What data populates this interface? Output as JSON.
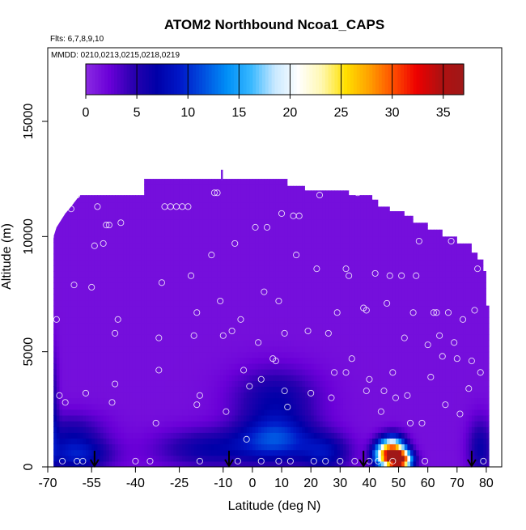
{
  "chart_data": {
    "type": "heatmap",
    "title": "ATOM2 Northbound Ncoa1_CAPS",
    "flights_note": "Flts: 6,7,8,9,10",
    "dates_note": "MMDD: 0210,0213,0215,0218,0219",
    "xlabel": "Latitude (deg N)",
    "ylabel": "Altitude (m)",
    "xlim": [
      -70,
      85
    ],
    "ylim": [
      0,
      17500
    ],
    "x_ticks": [
      -70,
      -55,
      -40,
      -25,
      -10,
      0,
      10,
      20,
      30,
      40,
      50,
      60,
      70,
      80
    ],
    "y_ticks": [
      0,
      5000,
      10000,
      15000
    ],
    "colorbar": {
      "range": [
        0,
        37
      ],
      "ticks": [
        0,
        5,
        10,
        15,
        20,
        25,
        30,
        35
      ],
      "stops": [
        "#8a2be2",
        "#6a00d8",
        "#2a00b0",
        "#0000a8",
        "#0018c8",
        "#0050e0",
        "#0090f8",
        "#38b8ff",
        "#c8e8ff",
        "#ffffff",
        "#fff8b0",
        "#ffe000",
        "#ffa000",
        "#ff5000",
        "#ee0000",
        "#b01010",
        "#a01818"
      ]
    },
    "ceiling_profile": [
      [
        -68,
        10000
      ],
      [
        -67,
        10400
      ],
      [
        -66,
        10600
      ],
      [
        -64,
        11000
      ],
      [
        -62,
        11300
      ],
      [
        -59,
        11800
      ],
      [
        -37,
        11800
      ],
      [
        -37,
        12500
      ],
      [
        -1,
        12500
      ],
      [
        8,
        12500
      ],
      [
        12,
        12500
      ],
      [
        12,
        12200
      ],
      [
        18,
        12200
      ],
      [
        18,
        12000
      ],
      [
        33,
        12000
      ],
      [
        33,
        11800
      ],
      [
        41,
        11800
      ],
      [
        41,
        11600
      ],
      [
        43,
        11600
      ],
      [
        43,
        11300
      ],
      [
        47,
        11300
      ],
      [
        47,
        11100
      ],
      [
        52,
        11100
      ],
      [
        52,
        10900
      ],
      [
        55,
        10900
      ],
      [
        55,
        10600
      ],
      [
        60,
        10600
      ],
      [
        60,
        10300
      ],
      [
        65,
        10300
      ],
      [
        65,
        10000
      ],
      [
        70,
        10000
      ],
      [
        70,
        9700
      ],
      [
        75,
        9700
      ],
      [
        75,
        9300
      ],
      [
        77,
        9300
      ],
      [
        77,
        9000
      ],
      [
        79,
        9000
      ],
      [
        79,
        8500
      ],
      [
        80,
        8500
      ],
      [
        80,
        7000
      ],
      [
        81,
        7000
      ],
      [
        81,
        0
      ],
      [
        -68,
        0
      ]
    ],
    "background_value": 1.5,
    "hotspots": [
      {
        "x": 50,
        "y": 300,
        "sx": 3,
        "sy": 300,
        "value": 35
      },
      {
        "x": 48,
        "y": 800,
        "sx": 3,
        "sy": 400,
        "value": 22
      },
      {
        "x": 44,
        "y": 500,
        "sx": 2.5,
        "sy": 400,
        "value": 12
      },
      {
        "x": 8,
        "y": 1200,
        "sx": 9,
        "sy": 700,
        "value": 9
      },
      {
        "x": 8,
        "y": 3000,
        "sx": 10,
        "sy": 900,
        "value": 5
      },
      {
        "x": -60,
        "y": 500,
        "sx": 8,
        "sy": 500,
        "value": 7
      },
      {
        "x": -62,
        "y": 1500,
        "sx": 8,
        "sy": 600,
        "value": 4
      },
      {
        "x": 25,
        "y": 600,
        "sx": 6,
        "sy": 600,
        "value": 6
      },
      {
        "x": -15,
        "y": 800,
        "sx": 12,
        "sy": 600,
        "value": 5
      },
      {
        "x": 78,
        "y": 800,
        "sx": 3,
        "sy": 900,
        "value": 5
      },
      {
        "x": -68,
        "y": 2500,
        "sx": 1.2,
        "sy": 1800,
        "value": 4
      }
    ],
    "observation_points": [
      [
        -69,
        10000
      ],
      [
        -68,
        10600
      ],
      [
        -67,
        6400
      ],
      [
        -66,
        3100
      ],
      [
        -64,
        2800
      ],
      [
        -65,
        250
      ],
      [
        -60,
        250
      ],
      [
        -58,
        250
      ],
      [
        -62,
        11200
      ],
      [
        -61,
        7900
      ],
      [
        -60,
        11800
      ],
      [
        -57,
        3200
      ],
      [
        -55,
        7800
      ],
      [
        -54,
        9600
      ],
      [
        -53,
        11300
      ],
      [
        -51,
        9700
      ],
      [
        -50,
        10500
      ],
      [
        -49,
        10500
      ],
      [
        -48,
        2800
      ],
      [
        -47,
        3600
      ],
      [
        -47,
        5800
      ],
      [
        -46,
        6400
      ],
      [
        -45,
        10600
      ],
      [
        -40,
        250
      ],
      [
        -35,
        250
      ],
      [
        -33,
        1900
      ],
      [
        -32,
        4200
      ],
      [
        -32,
        5600
      ],
      [
        -31,
        8000
      ],
      [
        -30,
        11300
      ],
      [
        -28,
        11300
      ],
      [
        -26,
        11300
      ],
      [
        -24,
        11300
      ],
      [
        -22,
        11300
      ],
      [
        -21,
        8300
      ],
      [
        -20,
        5700
      ],
      [
        -19,
        6700
      ],
      [
        -19,
        2700
      ],
      [
        -18,
        3100
      ],
      [
        -18,
        250
      ],
      [
        -14,
        9200
      ],
      [
        -13,
        11900
      ],
      [
        -12,
        11900
      ],
      [
        -11,
        7200
      ],
      [
        -10,
        5700
      ],
      [
        -9,
        2400
      ],
      [
        -7,
        5900
      ],
      [
        -6,
        9700
      ],
      [
        -5,
        250
      ],
      [
        -4,
        6400
      ],
      [
        -3,
        4200
      ],
      [
        -2,
        1200
      ],
      [
        -1,
        3500
      ],
      [
        1,
        10400
      ],
      [
        2,
        5400
      ],
      [
        3,
        3800
      ],
      [
        3,
        250
      ],
      [
        4,
        7600
      ],
      [
        5,
        10400
      ],
      [
        7,
        4700
      ],
      [
        8,
        4600
      ],
      [
        9,
        7200
      ],
      [
        9,
        250
      ],
      [
        10,
        11000
      ],
      [
        11,
        5800
      ],
      [
        11,
        3300
      ],
      [
        12,
        2600
      ],
      [
        13,
        250
      ],
      [
        14,
        10900
      ],
      [
        15,
        9200
      ],
      [
        16,
        10900
      ],
      [
        19,
        5900
      ],
      [
        20,
        3200
      ],
      [
        21,
        250
      ],
      [
        22,
        8600
      ],
      [
        23,
        11800
      ],
      [
        25,
        250
      ],
      [
        26,
        5800
      ],
      [
        27,
        3000
      ],
      [
        28,
        4100
      ],
      [
        29,
        6700
      ],
      [
        30,
        250
      ],
      [
        32,
        4100
      ],
      [
        32,
        8600
      ],
      [
        33,
        8300
      ],
      [
        34,
        4700
      ],
      [
        35,
        250
      ],
      [
        36,
        11900
      ],
      [
        38,
        6900
      ],
      [
        39,
        6800
      ],
      [
        39,
        3300
      ],
      [
        40,
        3800
      ],
      [
        40,
        250
      ],
      [
        42,
        8400
      ],
      [
        43,
        250
      ],
      [
        44,
        2400
      ],
      [
        45,
        3300
      ],
      [
        46,
        7100
      ],
      [
        47,
        8300
      ],
      [
        48,
        4100
      ],
      [
        48,
        250
      ],
      [
        49,
        3000
      ],
      [
        51,
        8300
      ],
      [
        52,
        5600
      ],
      [
        53,
        3100
      ],
      [
        54,
        1900
      ],
      [
        55,
        6700
      ],
      [
        56,
        8300
      ],
      [
        57,
        9800
      ],
      [
        58,
        1900
      ],
      [
        59,
        250
      ],
      [
        60,
        5300
      ],
      [
        61,
        3900
      ],
      [
        62,
        6700
      ],
      [
        63,
        6700
      ],
      [
        64,
        5700
      ],
      [
        65,
        4800
      ],
      [
        66,
        2700
      ],
      [
        67,
        6700
      ],
      [
        68,
        9800
      ],
      [
        69,
        5400
      ],
      [
        70,
        4700
      ],
      [
        71,
        2300
      ],
      [
        72,
        6400
      ],
      [
        74,
        3400
      ],
      [
        75,
        4600
      ],
      [
        76,
        6800
      ],
      [
        77,
        8600
      ],
      [
        78,
        4100
      ],
      [
        78,
        9400
      ],
      [
        79,
        250
      ]
    ],
    "arrow_markers": [
      -54,
      -8,
      38,
      75
    ],
    "arrow_top": 700,
    "outlier_bar": {
      "x": -10.5,
      "y_low": 12450,
      "y_high": 12900
    }
  }
}
